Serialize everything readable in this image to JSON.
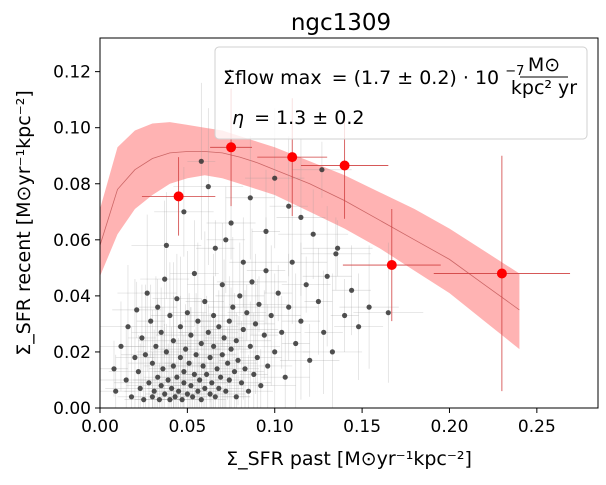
{
  "chart_data": {
    "type": "scatter",
    "title": "ngc1309",
    "xlabel": "Σ_SFR past [M⊙yr⁻¹kpc⁻²]",
    "ylabel": "Σ_SFR recent [M⊙yr⁻¹kpc⁻²]",
    "xlim": [
      0.0,
      0.285
    ],
    "ylim": [
      0.0,
      0.132
    ],
    "x_ticks": [
      0.0,
      0.05,
      0.1,
      0.15,
      0.2,
      0.25
    ],
    "x_tick_labels": [
      "0.00",
      "0.05",
      "0.10",
      "0.15",
      "0.20",
      "0.25"
    ],
    "y_ticks": [
      0.0,
      0.02,
      0.04,
      0.06,
      0.08,
      0.1,
      0.12
    ],
    "y_tick_labels": [
      "0.00",
      "0.02",
      "0.04",
      "0.06",
      "0.08",
      "0.10",
      "0.12"
    ],
    "grid": false,
    "annotations": {
      "flow_label": "Σ̇flow max",
      "flow_value": "= (1.7 ± 0.2) · 10",
      "flow_exponent": "−7",
      "flow_unit_num": "M⊙",
      "flow_unit_den": "kpc² yr",
      "eta_symbol": "η",
      "eta_value": "= 1.3 ± 0.2"
    },
    "model_band": {
      "name": "model uncertainty band",
      "color": "#ffb3b3",
      "x": [
        0.0,
        0.01,
        0.02,
        0.03,
        0.04,
        0.05,
        0.06,
        0.07,
        0.08,
        0.09,
        0.1,
        0.12,
        0.14,
        0.16,
        0.18,
        0.2,
        0.22,
        0.24
      ],
      "upper": [
        0.071,
        0.093,
        0.099,
        0.1015,
        0.102,
        0.101,
        0.1,
        0.099,
        0.097,
        0.095,
        0.093,
        0.088,
        0.083,
        0.077,
        0.071,
        0.064,
        0.056,
        0.048
      ],
      "lower": [
        0.047,
        0.062,
        0.071,
        0.076,
        0.08,
        0.082,
        0.083,
        0.082,
        0.08,
        0.078,
        0.076,
        0.07,
        0.064,
        0.057,
        0.049,
        0.041,
        0.031,
        0.021
      ]
    },
    "model_line": {
      "name": "model median",
      "color": "#cc6666",
      "x": [
        0.0,
        0.01,
        0.02,
        0.03,
        0.04,
        0.05,
        0.06,
        0.07,
        0.08,
        0.09,
        0.1,
        0.12,
        0.14,
        0.16,
        0.18,
        0.2,
        0.22,
        0.24
      ],
      "y": [
        0.058,
        0.078,
        0.085,
        0.089,
        0.091,
        0.0915,
        0.0915,
        0.091,
        0.0895,
        0.0875,
        0.085,
        0.08,
        0.074,
        0.067,
        0.06,
        0.053,
        0.044,
        0.035
      ]
    },
    "binned_series": {
      "name": "binned data",
      "color": "#ff0000",
      "points": [
        {
          "x": 0.045,
          "y": 0.0755,
          "xerr": 0.021,
          "yerr": 0.014
        },
        {
          "x": 0.075,
          "y": 0.093,
          "xerr": 0.012,
          "yerr": 0.021
        },
        {
          "x": 0.11,
          "y": 0.0895,
          "xerr": 0.02,
          "yerr": 0.021
        },
        {
          "x": 0.14,
          "y": 0.0865,
          "xerr": 0.025,
          "yerr": 0.019
        },
        {
          "x": 0.167,
          "y": 0.051,
          "xerr": 0.028,
          "yerr": 0.02
        },
        {
          "x": 0.23,
          "y": 0.048,
          "xerr": 0.039,
          "yerr": 0.042
        }
      ]
    },
    "pixel_series": {
      "name": "individual pixels",
      "color": "#333333",
      "points": [
        {
          "x": 0.008,
          "y": 0.014
        },
        {
          "x": 0.009,
          "y": 0.006
        },
        {
          "x": 0.012,
          "y": 0.022
        },
        {
          "x": 0.015,
          "y": 0.01
        },
        {
          "x": 0.016,
          "y": 0.029
        },
        {
          "x": 0.018,
          "y": 0.004
        },
        {
          "x": 0.02,
          "y": 0.018
        },
        {
          "x": 0.021,
          "y": 0.035
        },
        {
          "x": 0.022,
          "y": 0.013
        },
        {
          "x": 0.023,
          "y": 0.007
        },
        {
          "x": 0.024,
          "y": 0.025
        },
        {
          "x": 0.025,
          "y": 0.003
        },
        {
          "x": 0.026,
          "y": 0.019
        },
        {
          "x": 0.027,
          "y": 0.041
        },
        {
          "x": 0.028,
          "y": 0.009
        },
        {
          "x": 0.029,
          "y": 0.031
        },
        {
          "x": 0.03,
          "y": 0.004
        },
        {
          "x": 0.03,
          "y": 0.016
        },
        {
          "x": 0.031,
          "y": 0.006
        },
        {
          "x": 0.032,
          "y": 0.022
        },
        {
          "x": 0.033,
          "y": 0.011
        },
        {
          "x": 0.033,
          "y": 0.036
        },
        {
          "x": 0.034,
          "y": 0.003
        },
        {
          "x": 0.035,
          "y": 0.027
        },
        {
          "x": 0.035,
          "y": 0.008
        },
        {
          "x": 0.036,
          "y": 0.014
        },
        {
          "x": 0.037,
          "y": 0.005
        },
        {
          "x": 0.037,
          "y": 0.046
        },
        {
          "x": 0.038,
          "y": 0.02
        },
        {
          "x": 0.039,
          "y": 0.01
        },
        {
          "x": 0.04,
          "y": 0.003
        },
        {
          "x": 0.04,
          "y": 0.033
        },
        {
          "x": 0.041,
          "y": 0.007
        },
        {
          "x": 0.042,
          "y": 0.015
        },
        {
          "x": 0.042,
          "y": 0.024
        },
        {
          "x": 0.043,
          "y": 0.004
        },
        {
          "x": 0.044,
          "y": 0.011
        },
        {
          "x": 0.044,
          "y": 0.039
        },
        {
          "x": 0.045,
          "y": 0.006
        },
        {
          "x": 0.046,
          "y": 0.018
        },
        {
          "x": 0.046,
          "y": 0.029
        },
        {
          "x": 0.047,
          "y": 0.003
        },
        {
          "x": 0.048,
          "y": 0.009
        },
        {
          "x": 0.048,
          "y": 0.013
        },
        {
          "x": 0.049,
          "y": 0.021
        },
        {
          "x": 0.05,
          "y": 0.005
        },
        {
          "x": 0.05,
          "y": 0.034
        },
        {
          "x": 0.051,
          "y": 0.016
        },
        {
          "x": 0.052,
          "y": 0.008
        },
        {
          "x": 0.052,
          "y": 0.026
        },
        {
          "x": 0.053,
          "y": 0.004
        },
        {
          "x": 0.054,
          "y": 0.012
        },
        {
          "x": 0.054,
          "y": 0.048
        },
        {
          "x": 0.055,
          "y": 0.019
        },
        {
          "x": 0.056,
          "y": 0.006
        },
        {
          "x": 0.056,
          "y": 0.031
        },
        {
          "x": 0.057,
          "y": 0.01
        },
        {
          "x": 0.058,
          "y": 0.003
        },
        {
          "x": 0.058,
          "y": 0.023
        },
        {
          "x": 0.059,
          "y": 0.015
        },
        {
          "x": 0.06,
          "y": 0.007
        },
        {
          "x": 0.06,
          "y": 0.038
        },
        {
          "x": 0.061,
          "y": 0.012
        },
        {
          "x": 0.062,
          "y": 0.027
        },
        {
          "x": 0.063,
          "y": 0.005
        },
        {
          "x": 0.063,
          "y": 0.018
        },
        {
          "x": 0.064,
          "y": 0.009
        },
        {
          "x": 0.065,
          "y": 0.033
        },
        {
          "x": 0.065,
          "y": 0.022
        },
        {
          "x": 0.066,
          "y": 0.004
        },
        {
          "x": 0.067,
          "y": 0.014
        },
        {
          "x": 0.068,
          "y": 0.029
        },
        {
          "x": 0.068,
          "y": 0.007
        },
        {
          "x": 0.069,
          "y": 0.011
        },
        {
          "x": 0.07,
          "y": 0.044
        },
        {
          "x": 0.07,
          "y": 0.019
        },
        {
          "x": 0.071,
          "y": 0.025
        },
        {
          "x": 0.072,
          "y": 0.006
        },
        {
          "x": 0.073,
          "y": 0.016
        },
        {
          "x": 0.074,
          "y": 0.031
        },
        {
          "x": 0.074,
          "y": 0.01
        },
        {
          "x": 0.075,
          "y": 0.021
        },
        {
          "x": 0.076,
          "y": 0.036
        },
        {
          "x": 0.077,
          "y": 0.013
        },
        {
          "x": 0.078,
          "y": 0.024
        },
        {
          "x": 0.078,
          "y": 0.004
        },
        {
          "x": 0.079,
          "y": 0.017
        },
        {
          "x": 0.08,
          "y": 0.04
        },
        {
          "x": 0.081,
          "y": 0.009
        },
        {
          "x": 0.082,
          "y": 0.028
        },
        {
          "x": 0.083,
          "y": 0.014
        },
        {
          "x": 0.084,
          "y": 0.034
        },
        {
          "x": 0.085,
          "y": 0.006
        },
        {
          "x": 0.086,
          "y": 0.022
        },
        {
          "x": 0.087,
          "y": 0.045
        },
        {
          "x": 0.088,
          "y": 0.012
        },
        {
          "x": 0.089,
          "y": 0.03
        },
        {
          "x": 0.09,
          "y": 0.018
        },
        {
          "x": 0.091,
          "y": 0.037
        },
        {
          "x": 0.092,
          "y": 0.008
        },
        {
          "x": 0.094,
          "y": 0.026
        },
        {
          "x": 0.095,
          "y": 0.049
        },
        {
          "x": 0.096,
          "y": 0.015
        },
        {
          "x": 0.098,
          "y": 0.033
        },
        {
          "x": 0.1,
          "y": 0.02
        },
        {
          "x": 0.102,
          "y": 0.041
        },
        {
          "x": 0.104,
          "y": 0.027
        },
        {
          "x": 0.106,
          "y": 0.011
        },
        {
          "x": 0.108,
          "y": 0.036
        },
        {
          "x": 0.11,
          "y": 0.052
        },
        {
          "x": 0.112,
          "y": 0.023
        },
        {
          "x": 0.115,
          "y": 0.031
        },
        {
          "x": 0.118,
          "y": 0.044
        },
        {
          "x": 0.12,
          "y": 0.017
        },
        {
          "x": 0.122,
          "y": 0.062
        },
        {
          "x": 0.125,
          "y": 0.038
        },
        {
          "x": 0.128,
          "y": 0.027
        },
        {
          "x": 0.13,
          "y": 0.047
        },
        {
          "x": 0.133,
          "y": 0.02
        },
        {
          "x": 0.136,
          "y": 0.057
        },
        {
          "x": 0.14,
          "y": 0.033
        },
        {
          "x": 0.144,
          "y": 0.042
        },
        {
          "x": 0.148,
          "y": 0.029
        },
        {
          "x": 0.154,
          "y": 0.036
        },
        {
          "x": 0.165,
          "y": 0.034
        },
        {
          "x": 0.058,
          "y": 0.088
        },
        {
          "x": 0.066,
          "y": 0.057
        },
        {
          "x": 0.075,
          "y": 0.066
        },
        {
          "x": 0.048,
          "y": 0.07
        },
        {
          "x": 0.038,
          "y": 0.058
        },
        {
          "x": 0.095,
          "y": 0.063
        },
        {
          "x": 0.108,
          "y": 0.072
        },
        {
          "x": 0.115,
          "y": 0.068
        },
        {
          "x": 0.127,
          "y": 0.085
        },
        {
          "x": 0.135,
          "y": 0.055
        },
        {
          "x": 0.082,
          "y": 0.052
        },
        {
          "x": 0.072,
          "y": 0.06
        },
        {
          "x": 0.086,
          "y": 0.075
        },
        {
          "x": 0.1,
          "y": 0.082
        },
        {
          "x": 0.062,
          "y": 0.079
        }
      ]
    }
  }
}
